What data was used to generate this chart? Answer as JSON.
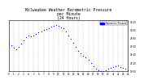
{
  "title": "Milwaukee Weather Barometric Pressure\nper Minute\n(24 Hours)",
  "title_fontsize": 3.5,
  "background_color": "#ffffff",
  "plot_bg_color": "#ffffff",
  "border_color": "#000000",
  "dot_color": "#0000ff",
  "dot_size": 0.8,
  "grid_color": "#bbbbbb",
  "grid_style": "--",
  "legend_label": "Barometric Pressure",
  "legend_color": "#0000ff",
  "xlim": [
    0,
    1440
  ],
  "ylim": [
    29.0,
    30.25
  ],
  "xtick_step": 60,
  "xtick_positions": [
    0,
    60,
    120,
    180,
    240,
    300,
    360,
    420,
    480,
    540,
    600,
    660,
    720,
    780,
    840,
    900,
    960,
    1020,
    1080,
    1140,
    1200,
    1260,
    1320,
    1380,
    1440
  ],
  "xtick_labels": [
    "0",
    "1",
    "2",
    "3",
    "4",
    "5",
    "6",
    "7",
    "8",
    "9",
    "10",
    "11",
    "12",
    "13",
    "14",
    "15",
    "16",
    "17",
    "18",
    "19",
    "20",
    "21",
    "22",
    "23",
    "24"
  ],
  "ytick_positions": [
    29.0,
    29.2,
    29.4,
    29.6,
    29.8,
    30.0,
    30.2
  ],
  "ytick_labels": [
    "29.00",
    "29.20",
    "29.40",
    "29.60",
    "29.80",
    "30.00",
    "30.20"
  ],
  "data_x": [
    0,
    30,
    60,
    90,
    120,
    150,
    180,
    210,
    240,
    270,
    300,
    330,
    360,
    390,
    420,
    450,
    480,
    510,
    540,
    570,
    600,
    630,
    660,
    690,
    720,
    750,
    780,
    810,
    840,
    870,
    900,
    930,
    960,
    990,
    1020,
    1050,
    1080,
    1110,
    1140,
    1170,
    1200,
    1230,
    1260,
    1290,
    1320,
    1350,
    1380,
    1410,
    1440
  ],
  "data_y": [
    29.68,
    29.63,
    29.58,
    29.54,
    29.6,
    29.68,
    29.76,
    29.84,
    29.88,
    29.85,
    29.88,
    29.92,
    29.95,
    29.97,
    30.0,
    30.03,
    30.05,
    30.08,
    30.1,
    30.12,
    30.1,
    30.07,
    30.04,
    29.98,
    29.88,
    29.8,
    29.7,
    29.6,
    29.5,
    29.44,
    29.38,
    29.33,
    29.27,
    29.2,
    29.12,
    29.06,
    29.02,
    29.0,
    29.0,
    29.01,
    29.05,
    29.08,
    29.1,
    29.12,
    29.13,
    29.1,
    29.08,
    29.05,
    29.02
  ]
}
